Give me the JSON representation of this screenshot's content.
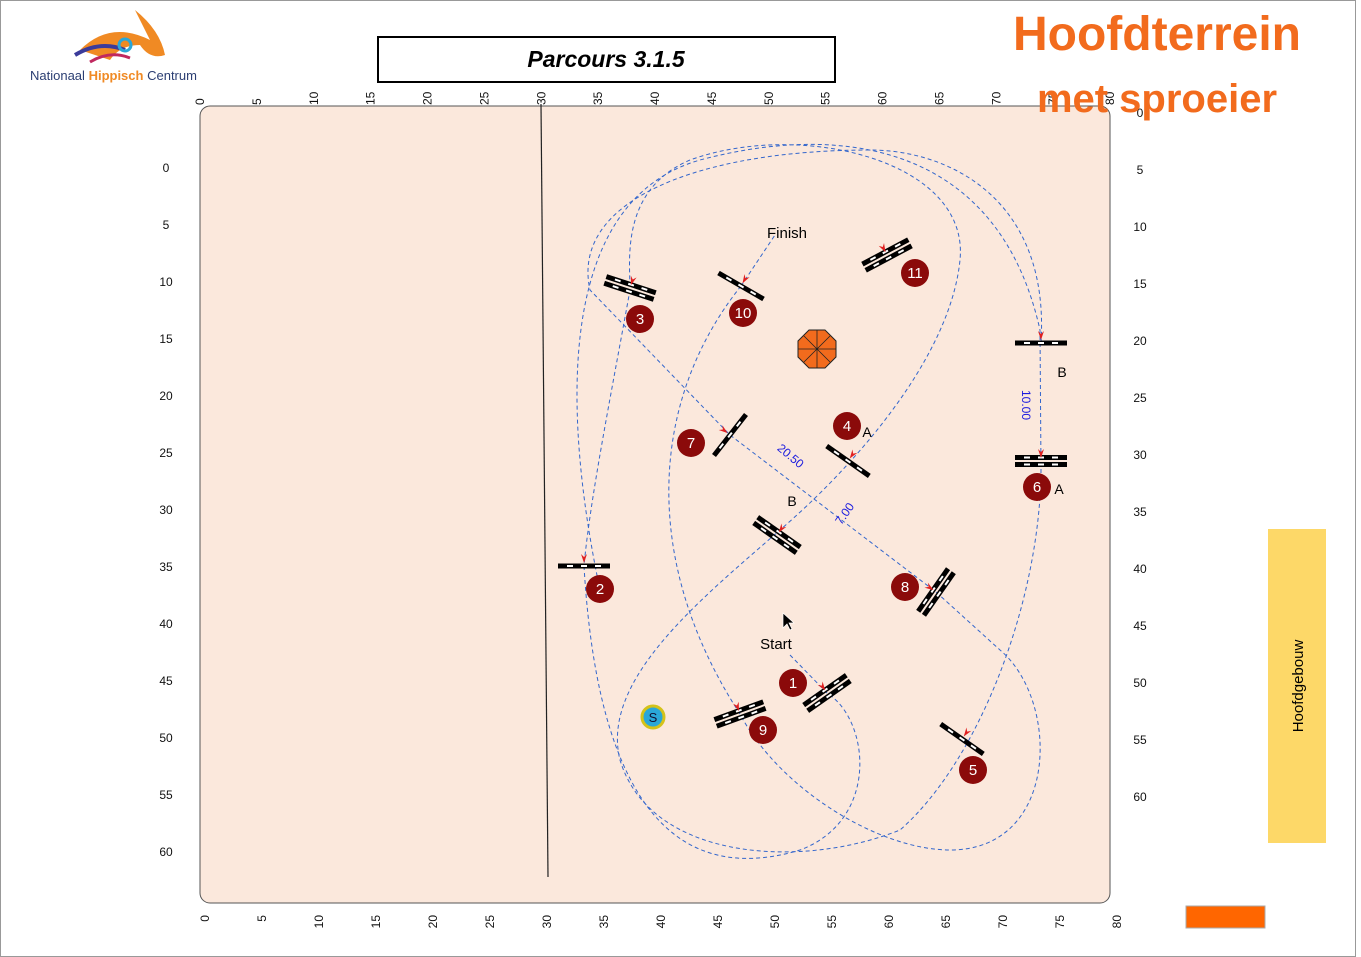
{
  "header": {
    "logo": {
      "word_1": "Nationaal",
      "word_2": "Hippisch",
      "word_3": "Centrum"
    },
    "title": "Parcours 3.1.5",
    "arena": "Hoofdterrein",
    "subtitle": "met sproeier"
  },
  "axes": {
    "top": [
      0,
      5,
      10,
      15,
      20,
      25,
      30,
      35,
      40,
      45,
      50,
      55,
      60,
      65,
      70,
      75,
      80
    ],
    "bottom": [
      0,
      5,
      10,
      15,
      20,
      25,
      30,
      35,
      40,
      45,
      50,
      55,
      60,
      65,
      70,
      75,
      80
    ],
    "left": [
      0,
      5,
      10,
      15,
      20,
      25,
      30,
      35,
      40,
      45,
      50,
      55,
      60
    ],
    "right": [
      0,
      5,
      10,
      15,
      20,
      25,
      30,
      35,
      40,
      45,
      50,
      55,
      60
    ]
  },
  "course": {
    "start": "Start",
    "finish": "Finish",
    "obstacles": [
      "1",
      "2",
      "3",
      "4",
      "5",
      "6",
      "7",
      "8",
      "9",
      "10",
      "11"
    ],
    "letters": [
      "A",
      "A",
      "B",
      "B"
    ],
    "distances": [
      "20.50",
      "7.00",
      "10.00"
    ],
    "water": "S"
  },
  "building": "Hoofdgebouw"
}
